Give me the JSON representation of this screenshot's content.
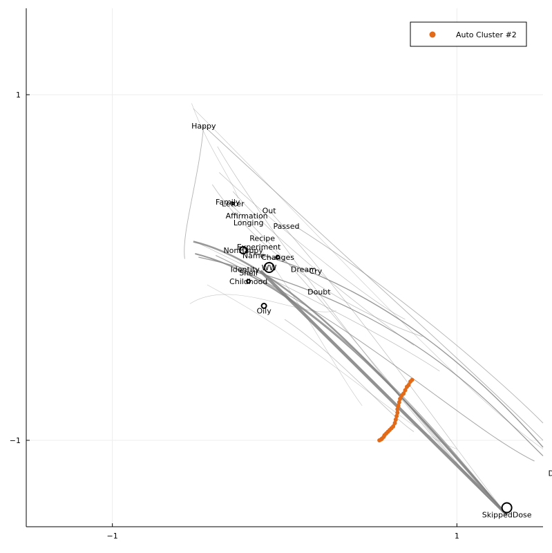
{
  "chart_data": {
    "type": "scatter",
    "xlim": [
      -1.5,
      1.5
    ],
    "ylim": [
      -1.5,
      1.5
    ],
    "x_ticks": [
      -1,
      1
    ],
    "x_tick_labels": [
      "−1",
      "1"
    ],
    "y_ticks": [
      1,
      -1
    ],
    "y_tick_labels": [
      "1",
      "−1"
    ],
    "grid": true,
    "legend_position": "top-right",
    "legend": [
      {
        "name": "Auto Cluster #2",
        "color": "#E26B1A"
      }
    ],
    "colors": {
      "edges": "#7f7f7f",
      "cluster": "#E26B1A",
      "node": "#000000"
    },
    "nodes": [
      {
        "label": "Happy",
        "x": -0.47,
        "y": 0.82
      },
      {
        "label": "Family",
        "x": -0.33,
        "y": 0.38
      },
      {
        "label": "Letter",
        "x": -0.3,
        "y": 0.37
      },
      {
        "label": "Out",
        "x": -0.09,
        "y": 0.33
      },
      {
        "label": "Affirmation",
        "x": -0.22,
        "y": 0.3
      },
      {
        "label": "Longing",
        "x": -0.21,
        "y": 0.26
      },
      {
        "label": "Passed",
        "x": 0.01,
        "y": 0.24
      },
      {
        "label": "Recipe",
        "x": -0.13,
        "y": 0.17
      },
      {
        "label": "Experiment",
        "x": -0.15,
        "y": 0.12
      },
      {
        "label": "NonHappy",
        "x": -0.24,
        "y": 0.1
      },
      {
        "label": "Name",
        "x": -0.18,
        "y": 0.07
      },
      {
        "label": "Changes",
        "x": -0.04,
        "y": 0.06
      },
      {
        "label": "WW",
        "x": -0.09,
        "y": 0.0
      },
      {
        "label": "Identity",
        "x": -0.23,
        "y": -0.01
      },
      {
        "label": "Shell",
        "x": -0.21,
        "y": -0.03
      },
      {
        "label": "Dream",
        "x": 0.11,
        "y": -0.01
      },
      {
        "label": "Cry",
        "x": 0.18,
        "y": -0.02
      },
      {
        "label": "Childhood",
        "x": -0.21,
        "y": -0.08
      },
      {
        "label": "Doubt",
        "x": 0.2,
        "y": -0.14
      },
      {
        "label": "Oily",
        "x": -0.12,
        "y": -0.25
      },
      {
        "label": "SkippedDose",
        "x": 1.29,
        "y": -1.43
      },
      {
        "label": "Do",
        "x": 1.53,
        "y": -1.19
      }
    ],
    "cluster_series": {
      "name": "Auto Cluster #2",
      "points": [
        [
          0.74,
          -0.65
        ],
        [
          0.73,
          -0.66
        ],
        [
          0.72,
          -0.68
        ],
        [
          0.71,
          -0.69
        ],
        [
          0.7,
          -0.71
        ],
        [
          0.69,
          -0.73
        ],
        [
          0.68,
          -0.74
        ],
        [
          0.67,
          -0.76
        ],
        [
          0.665,
          -0.78
        ],
        [
          0.66,
          -0.8
        ],
        [
          0.655,
          -0.82
        ],
        [
          0.655,
          -0.84
        ],
        [
          0.65,
          -0.86
        ],
        [
          0.645,
          -0.88
        ],
        [
          0.64,
          -0.9
        ],
        [
          0.63,
          -0.92
        ],
        [
          0.62,
          -0.93
        ],
        [
          0.61,
          -0.94
        ],
        [
          0.6,
          -0.95
        ],
        [
          0.59,
          -0.96
        ],
        [
          0.58,
          -0.97
        ],
        [
          0.575,
          -0.98
        ],
        [
          0.565,
          -0.99
        ],
        [
          0.56,
          -0.995
        ],
        [
          0.55,
          -1.0
        ]
      ]
    }
  }
}
